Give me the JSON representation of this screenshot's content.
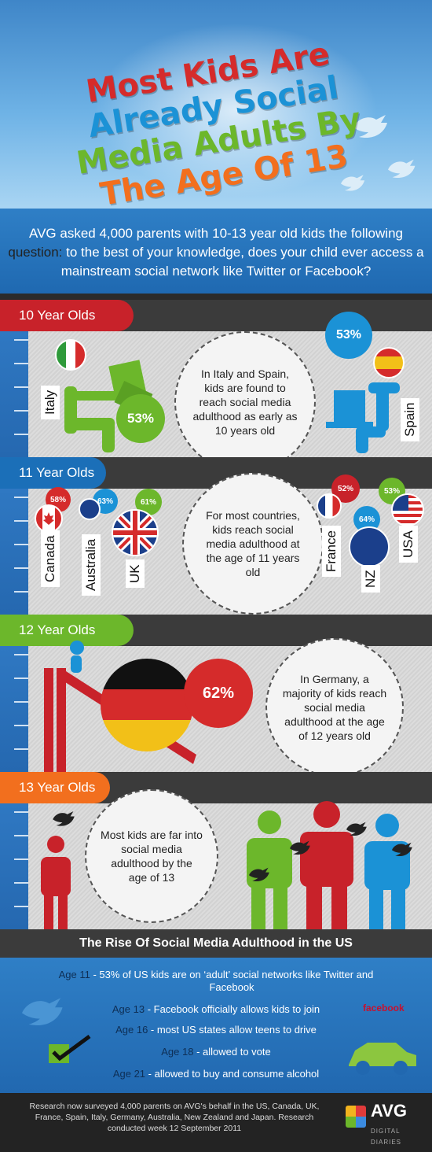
{
  "header": {
    "title_lines": [
      "Most Kids Are",
      "Already Social",
      "Media Adults By",
      "The Age Of 13"
    ]
  },
  "intro": {
    "text_lead": "AVG asked 4,000 parents with 10-13 year old kids the following ",
    "text_highlight": "question:",
    "text_rest": " to the best of your knowledge, does your child ever access a mainstream social network like Twitter or Facebook?"
  },
  "colors": {
    "red": "#d52b2b",
    "blue": "#1b92d6",
    "green": "#6cb72b",
    "orange": "#f26f1e"
  },
  "sections": [
    {
      "label": "10 Year Olds",
      "circle_text": "In Italy and Spain, kids are found to reach social media adulthood as early as 10 years old",
      "countries": [
        {
          "name": "Italy",
          "percent": "53%"
        },
        {
          "name": "Spain",
          "percent": "53%"
        }
      ]
    },
    {
      "label": "11 Year Olds",
      "circle_text": "For most countries, kids reach social media adulthood at the age of 11 years old",
      "countries": [
        {
          "name": "Canada",
          "percent": "58%"
        },
        {
          "name": "Australia",
          "percent": "63%"
        },
        {
          "name": "UK",
          "percent": "61%"
        },
        {
          "name": "France",
          "percent": "52%"
        },
        {
          "name": "NZ",
          "percent": "64%"
        },
        {
          "name": "USA",
          "percent": "53%"
        }
      ]
    },
    {
      "label": "12 Year Olds",
      "circle_text": "In Germany, a majority of kids reach social media adulthood at the age of 12 years old",
      "percent": "62%"
    },
    {
      "label": "13 Year Olds",
      "circle_text": "Most kids are far into social media adulthood by the age of 13"
    }
  ],
  "us": {
    "title": "The Rise Of Social Media Adulthood in the US",
    "items": [
      {
        "age": "Age 11",
        "text": " - 53% of US kids are on ‘adult’ social networks like Twitter and",
        "text2": "Facebook"
      },
      {
        "age": "Age 13",
        "text": " - Facebook officially allows kids to join"
      },
      {
        "age": "Age 16",
        "text": " - most US states allow teens to drive"
      },
      {
        "age": "Age 18",
        "text": " - allowed to vote"
      },
      {
        "age": "Age 21",
        "text": " - allowed to buy and consume alcohol"
      }
    ],
    "facebook_logo": "facebook"
  },
  "footer": {
    "text": "Research now surveyed 4,000 parents on AVG's behalf in the US, Canada, UK, France, Spain, Italy, Germany, Australia, New Zealand and Japan. Research conducted week 12 September 2011",
    "brand": "AVG",
    "brand_sub": "DIGITAL DIARIES"
  },
  "icons": [
    "twitter-bird-icon",
    "person-icon",
    "laptop-icon",
    "slide-icon",
    "checkmark-icon",
    "car-icon"
  ]
}
